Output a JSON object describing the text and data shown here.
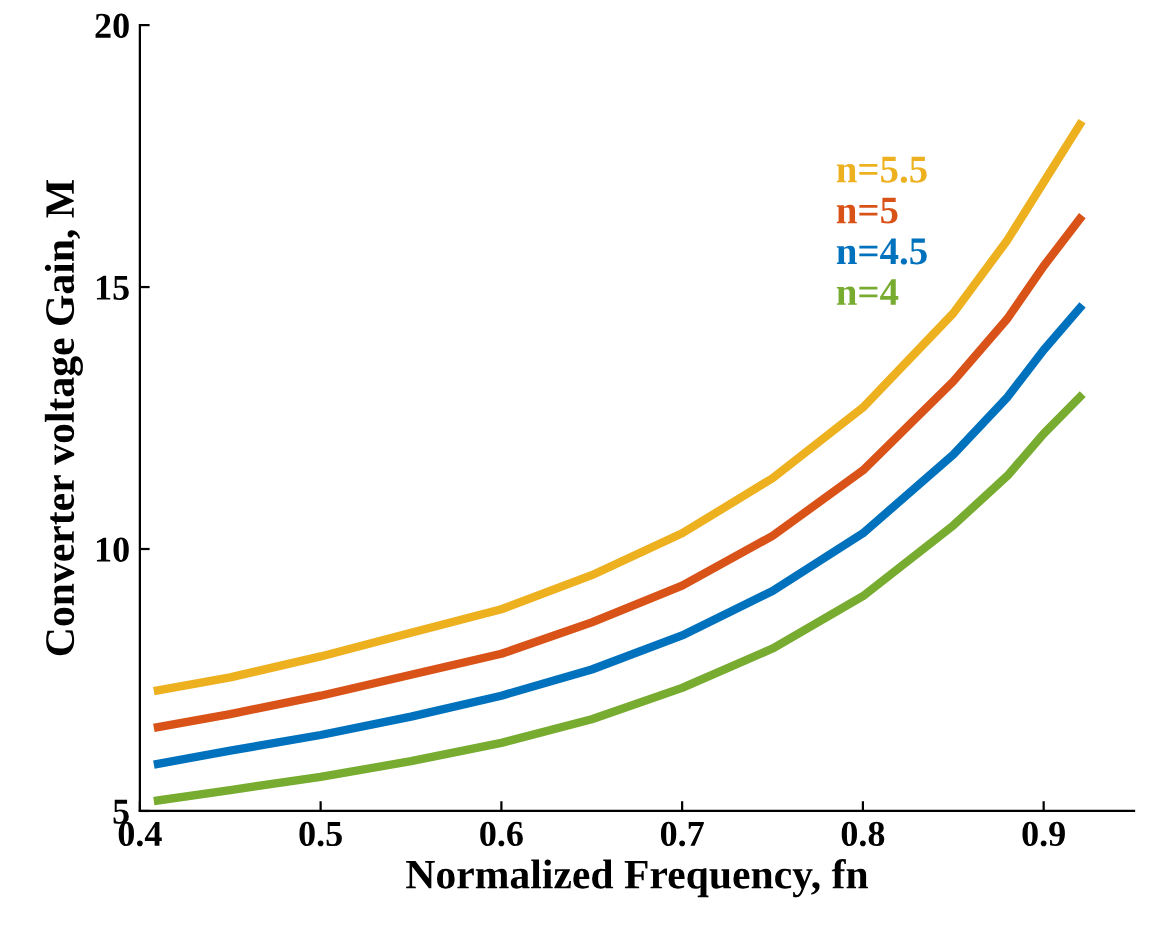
{
  "chart_data": {
    "type": "line",
    "xlabel": "Normalized Frequency, fn",
    "ylabel": "Converter voltage Gain, M",
    "x": [
      0.41,
      0.45,
      0.5,
      0.55,
      0.6,
      0.65,
      0.7,
      0.75,
      0.8,
      0.85,
      0.88,
      0.9,
      0.92
    ],
    "series": [
      {
        "name": "n=5.5",
        "color": "#edb120",
        "values": [
          7.3,
          7.55,
          7.95,
          8.4,
          8.85,
          9.5,
          10.3,
          11.35,
          12.7,
          14.5,
          15.9,
          17.0,
          18.1
        ]
      },
      {
        "name": "n=5",
        "color": "#d95319",
        "values": [
          6.6,
          6.85,
          7.2,
          7.6,
          8.0,
          8.6,
          9.3,
          10.25,
          11.5,
          13.2,
          14.4,
          15.4,
          16.3
        ]
      },
      {
        "name": "n=4.5",
        "color": "#0072bd",
        "values": [
          5.9,
          6.15,
          6.45,
          6.8,
          7.2,
          7.7,
          8.35,
          9.2,
          10.3,
          11.8,
          12.9,
          13.8,
          14.6
        ]
      },
      {
        "name": "n=4",
        "color": "#77ac30",
        "values": [
          5.2,
          5.4,
          5.65,
          5.95,
          6.3,
          6.75,
          7.35,
          8.1,
          9.1,
          10.45,
          11.4,
          12.2,
          12.9
        ]
      }
    ],
    "xlim": [
      0.4,
      0.95
    ],
    "ylim": [
      5,
      20
    ],
    "xticks": [
      0.4,
      0.5,
      0.6,
      0.7,
      0.8,
      0.9
    ],
    "yticks": [
      5,
      10,
      15,
      20
    ],
    "grid": false,
    "legend": "top right",
    "marker": "none",
    "line_style": "solid"
  }
}
